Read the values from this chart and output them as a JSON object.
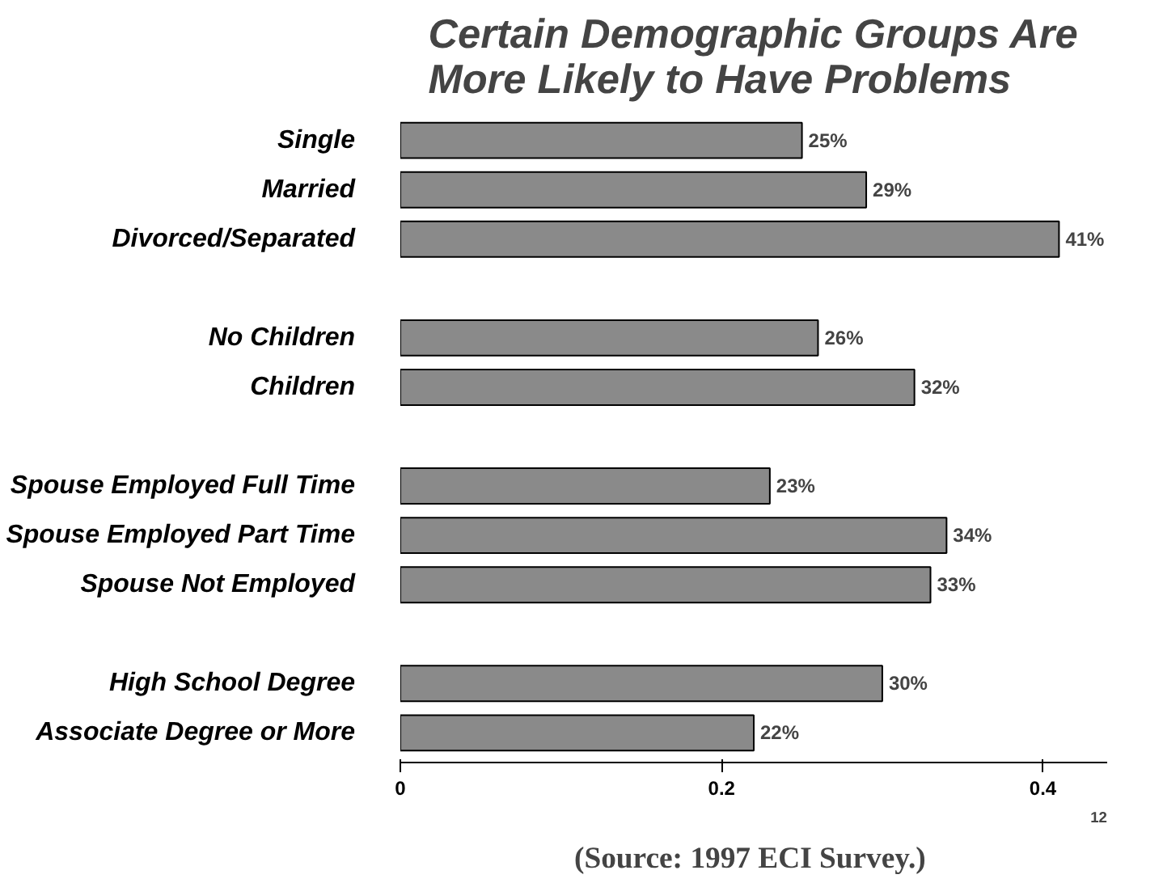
{
  "chart_data": {
    "type": "bar",
    "orientation": "horizontal",
    "title": "Certain Demographic Groups Are\nMore Likely to Have Problems",
    "categories": [
      "Single",
      "Married",
      "Divorced/Separated",
      null,
      "No Children",
      "Children",
      null,
      "Spouse Employed Full Time",
      "Spouse Employed Part Time",
      "Spouse Not Employed",
      null,
      "High School Degree",
      "Associate Degree or More"
    ],
    "values": [
      0.25,
      0.29,
      0.41,
      null,
      0.26,
      0.32,
      null,
      0.23,
      0.34,
      0.33,
      null,
      0.3,
      0.22
    ],
    "value_labels": [
      "25%",
      "29%",
      "41%",
      null,
      "26%",
      "32%",
      null,
      "23%",
      "34%",
      "33%",
      null,
      "30%",
      "22%"
    ],
    "color": "#8a8a8a",
    "xlim": [
      0,
      0.44
    ],
    "xticks": [
      0,
      0.2,
      0.4
    ],
    "grid": false,
    "annotations": [
      "(Source:  1997 ECI Survey.)",
      "12"
    ]
  }
}
